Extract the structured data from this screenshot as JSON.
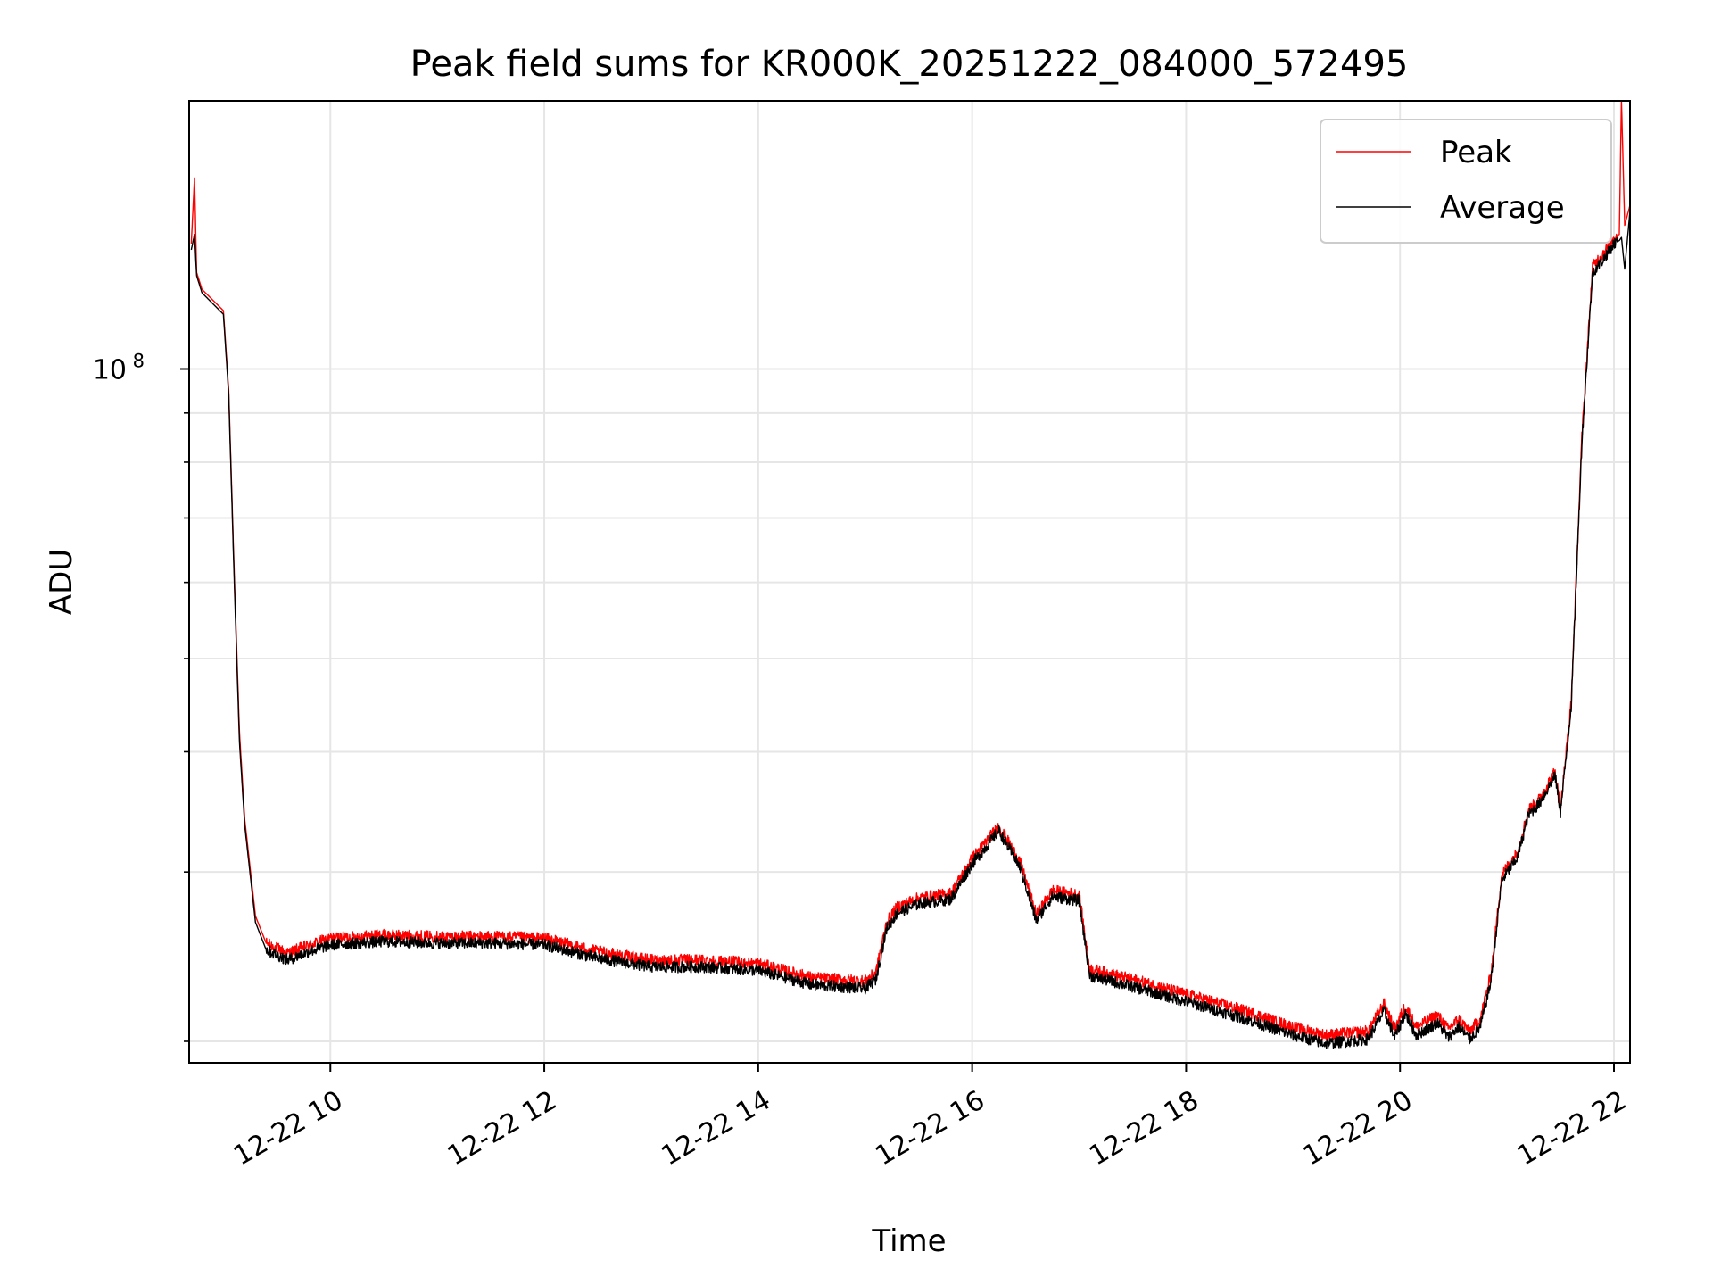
{
  "chart_data": {
    "type": "line",
    "title": "Peak field sums for KR000K_20251222_084000_572495",
    "xlabel": "Time",
    "ylabel": "ADU",
    "yscale": "log",
    "xlim_hours": [
      8.68,
      22.15
    ],
    "ylim": [
      19000000,
      190000000
    ],
    "x_ticks": [
      {
        "value": 10,
        "label": "12-22 10"
      },
      {
        "value": 12,
        "label": "12-22 12"
      },
      {
        "value": 14,
        "label": "12-22 14"
      },
      {
        "value": 16,
        "label": "12-22 16"
      },
      {
        "value": 18,
        "label": "12-22 18"
      },
      {
        "value": 20,
        "label": "12-22 20"
      },
      {
        "value": 22,
        "label": "12-22 22"
      }
    ],
    "y_major_ticks": [
      {
        "value": 100000000,
        "base": "10",
        "exponent": "8"
      }
    ],
    "y_minor_ticks": [
      20000000,
      30000000,
      40000000,
      50000000,
      60000000,
      70000000,
      80000000,
      90000000,
      200000000
    ],
    "grid": true,
    "legend_position": "top-right",
    "series": [
      {
        "name": "Peak",
        "color": "#ff0000",
        "x": [
          8.7,
          8.73,
          8.75,
          8.8,
          9.0,
          9.05,
          9.1,
          9.15,
          9.2,
          9.3,
          9.4,
          9.5,
          9.6,
          9.8,
          10.0,
          10.5,
          11.0,
          11.5,
          12.0,
          12.5,
          13.0,
          13.5,
          14.0,
          14.5,
          15.0,
          15.1,
          15.2,
          15.3,
          15.5,
          15.8,
          16.0,
          16.25,
          16.45,
          16.6,
          16.75,
          17.0,
          17.1,
          17.5,
          18.0,
          18.5,
          19.0,
          19.3,
          19.7,
          19.85,
          19.95,
          20.05,
          20.15,
          20.35,
          20.45,
          20.55,
          20.65,
          20.75,
          20.85,
          20.95,
          21.1,
          21.2,
          21.3,
          21.45,
          21.5,
          21.6,
          21.7,
          21.8,
          21.9,
          22.0,
          22.05,
          22.07,
          22.1,
          22.15
        ],
        "values": [
          135000000,
          158000000,
          126000000,
          121000000,
          115000000,
          95000000,
          62000000,
          42000000,
          34000000,
          27000000,
          25300000,
          25000000,
          24700000,
          25200000,
          25600000,
          25800000,
          25700000,
          25700000,
          25600000,
          24800000,
          24300000,
          24300000,
          24100000,
          23300000,
          23100000,
          23600000,
          26600000,
          27600000,
          28200000,
          28500000,
          31000000,
          33500000,
          30700000,
          27100000,
          28700000,
          28400000,
          23800000,
          23200000,
          22400000,
          21600000,
          20700000,
          20300000,
          20500000,
          21900000,
          20600000,
          21800000,
          20700000,
          21300000,
          20600000,
          21100000,
          20500000,
          21100000,
          23500000,
          29800000,
          31500000,
          34800000,
          35700000,
          38200000,
          35000000,
          45000000,
          85000000,
          128000000,
          132000000,
          137000000,
          138000000,
          190000000,
          141000000,
          148000000
        ]
      },
      {
        "name": "Average",
        "color": "#000000",
        "x": [
          8.7,
          8.73,
          8.75,
          8.8,
          9.0,
          9.05,
          9.1,
          9.15,
          9.2,
          9.3,
          9.4,
          9.5,
          9.6,
          9.8,
          10.0,
          10.5,
          11.0,
          11.5,
          12.0,
          12.5,
          13.0,
          13.5,
          14.0,
          14.5,
          15.0,
          15.1,
          15.2,
          15.3,
          15.5,
          15.8,
          16.0,
          16.25,
          16.45,
          16.6,
          16.75,
          17.0,
          17.1,
          17.5,
          18.0,
          18.5,
          19.0,
          19.3,
          19.7,
          19.85,
          19.95,
          20.05,
          20.15,
          20.35,
          20.45,
          20.55,
          20.65,
          20.75,
          20.85,
          20.95,
          21.1,
          21.2,
          21.3,
          21.45,
          21.5,
          21.6,
          21.7,
          21.8,
          21.9,
          22.0,
          22.05,
          22.07,
          22.1,
          22.15
        ],
        "values": [
          133000000,
          138000000,
          125000000,
          120000000,
          114000000,
          94000000,
          61000000,
          41000000,
          33500000,
          26600000,
          24900000,
          24600000,
          24300000,
          24800000,
          25200000,
          25400000,
          25300000,
          25300000,
          25200000,
          24400000,
          23900000,
          23900000,
          23700000,
          22900000,
          22700000,
          23200000,
          26200000,
          27200000,
          27800000,
          28100000,
          30600000,
          33100000,
          30300000,
          26700000,
          28300000,
          28000000,
          23400000,
          22800000,
          22000000,
          21200000,
          20300000,
          19900000,
          20100000,
          21500000,
          20200000,
          21400000,
          20300000,
          20900000,
          20200000,
          20700000,
          20100000,
          20700000,
          23100000,
          29400000,
          31100000,
          34400000,
          35300000,
          37800000,
          34600000,
          44600000,
          84000000,
          126000000,
          130000000,
          135000000,
          136000000,
          137000000,
          127000000,
          146000000
        ]
      }
    ]
  }
}
